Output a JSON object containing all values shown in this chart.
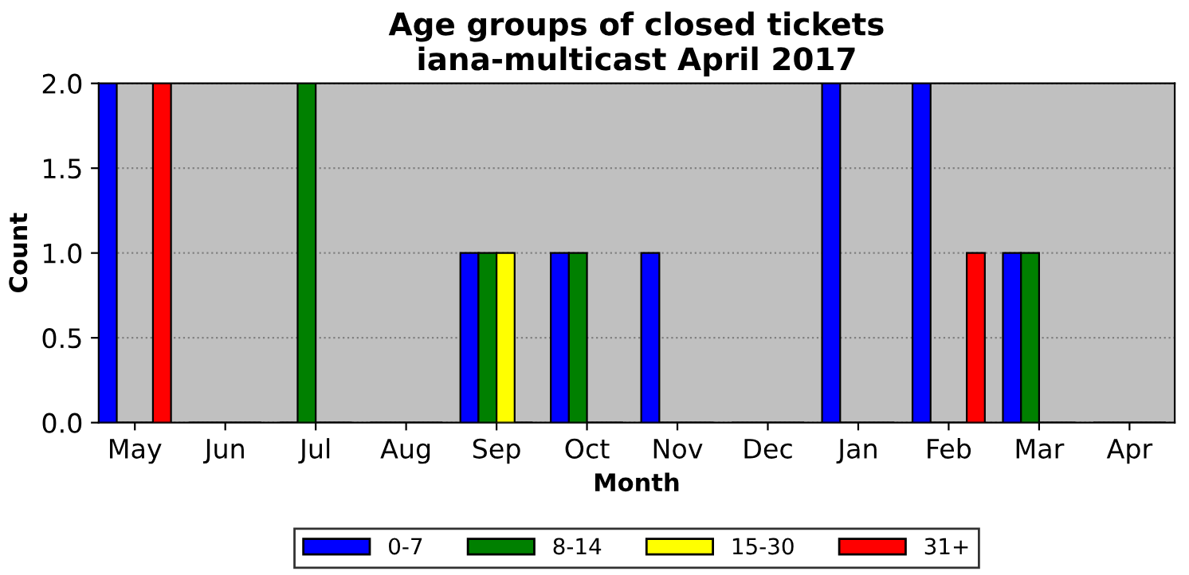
{
  "chart_data": {
    "type": "bar",
    "title": "Age groups of closed tickets\niana-multicast April 2017",
    "xlabel": "Month",
    "ylabel": "Count",
    "categories": [
      "May",
      "Jun",
      "Jul",
      "Aug",
      "Sep",
      "Oct",
      "Nov",
      "Dec",
      "Jan",
      "Feb",
      "Mar",
      "Apr"
    ],
    "series": [
      {
        "name": "0-7",
        "color": "#0000ff",
        "values": [
          2,
          0,
          0,
          0,
          1,
          1,
          1,
          0,
          2,
          2,
          1,
          0
        ]
      },
      {
        "name": "8-14",
        "color": "#008000",
        "values": [
          0,
          0,
          2,
          0,
          1,
          1,
          0,
          0,
          0,
          0,
          1,
          0
        ]
      },
      {
        "name": "15-30",
        "color": "#ffff00",
        "values": [
          0,
          0,
          0,
          0,
          1,
          0,
          0,
          0,
          0,
          0,
          0,
          0
        ]
      },
      {
        "name": "31+",
        "color": "#ff0000",
        "values": [
          2,
          0,
          0,
          0,
          0,
          0,
          0,
          0,
          0,
          1,
          0,
          0
        ]
      }
    ],
    "ylim": [
      0,
      2
    ],
    "yticks": [
      {
        "value": 0,
        "label": "0.0"
      },
      {
        "value": 0.5,
        "label": "0.5"
      },
      {
        "value": 1,
        "label": "1.0"
      },
      {
        "value": 1.5,
        "label": "1.5"
      },
      {
        "value": 2,
        "label": "2.0"
      }
    ],
    "grid": "y",
    "legend": "bottom"
  }
}
